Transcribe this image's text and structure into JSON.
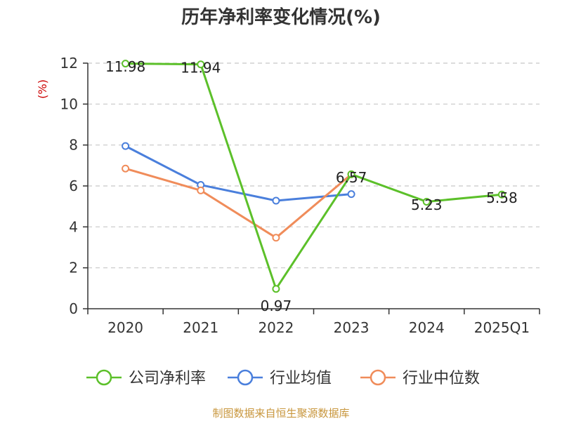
{
  "chart_data": {
    "type": "line",
    "title": "历年净利率变化情况(%)",
    "ylabel": "(%)",
    "xlabel": "",
    "categories": [
      "2020",
      "2021",
      "2022",
      "2023",
      "2024",
      "2025Q1"
    ],
    "ylim": [
      0,
      12
    ],
    "yticks": [
      0,
      2,
      4,
      6,
      8,
      10,
      12
    ],
    "grid": true,
    "legend_position": "bottom",
    "series": [
      {
        "name": "公司净利率",
        "color": "#5cc02a",
        "values": [
          11.98,
          11.94,
          0.97,
          6.57,
          5.23,
          5.58
        ],
        "labels": [
          "11.98",
          "11.94",
          "0.97",
          "6.57",
          "5.23",
          "5.58"
        ]
      },
      {
        "name": "行业均值",
        "color": "#4a7fdc",
        "values": [
          7.95,
          6.05,
          5.28,
          5.6,
          null,
          null
        ]
      },
      {
        "name": "行业中位数",
        "color": "#f08c5a",
        "values": [
          6.85,
          5.78,
          3.47,
          6.57,
          null,
          null
        ]
      }
    ]
  },
  "source": "制图数据来自恒生聚源数据库"
}
